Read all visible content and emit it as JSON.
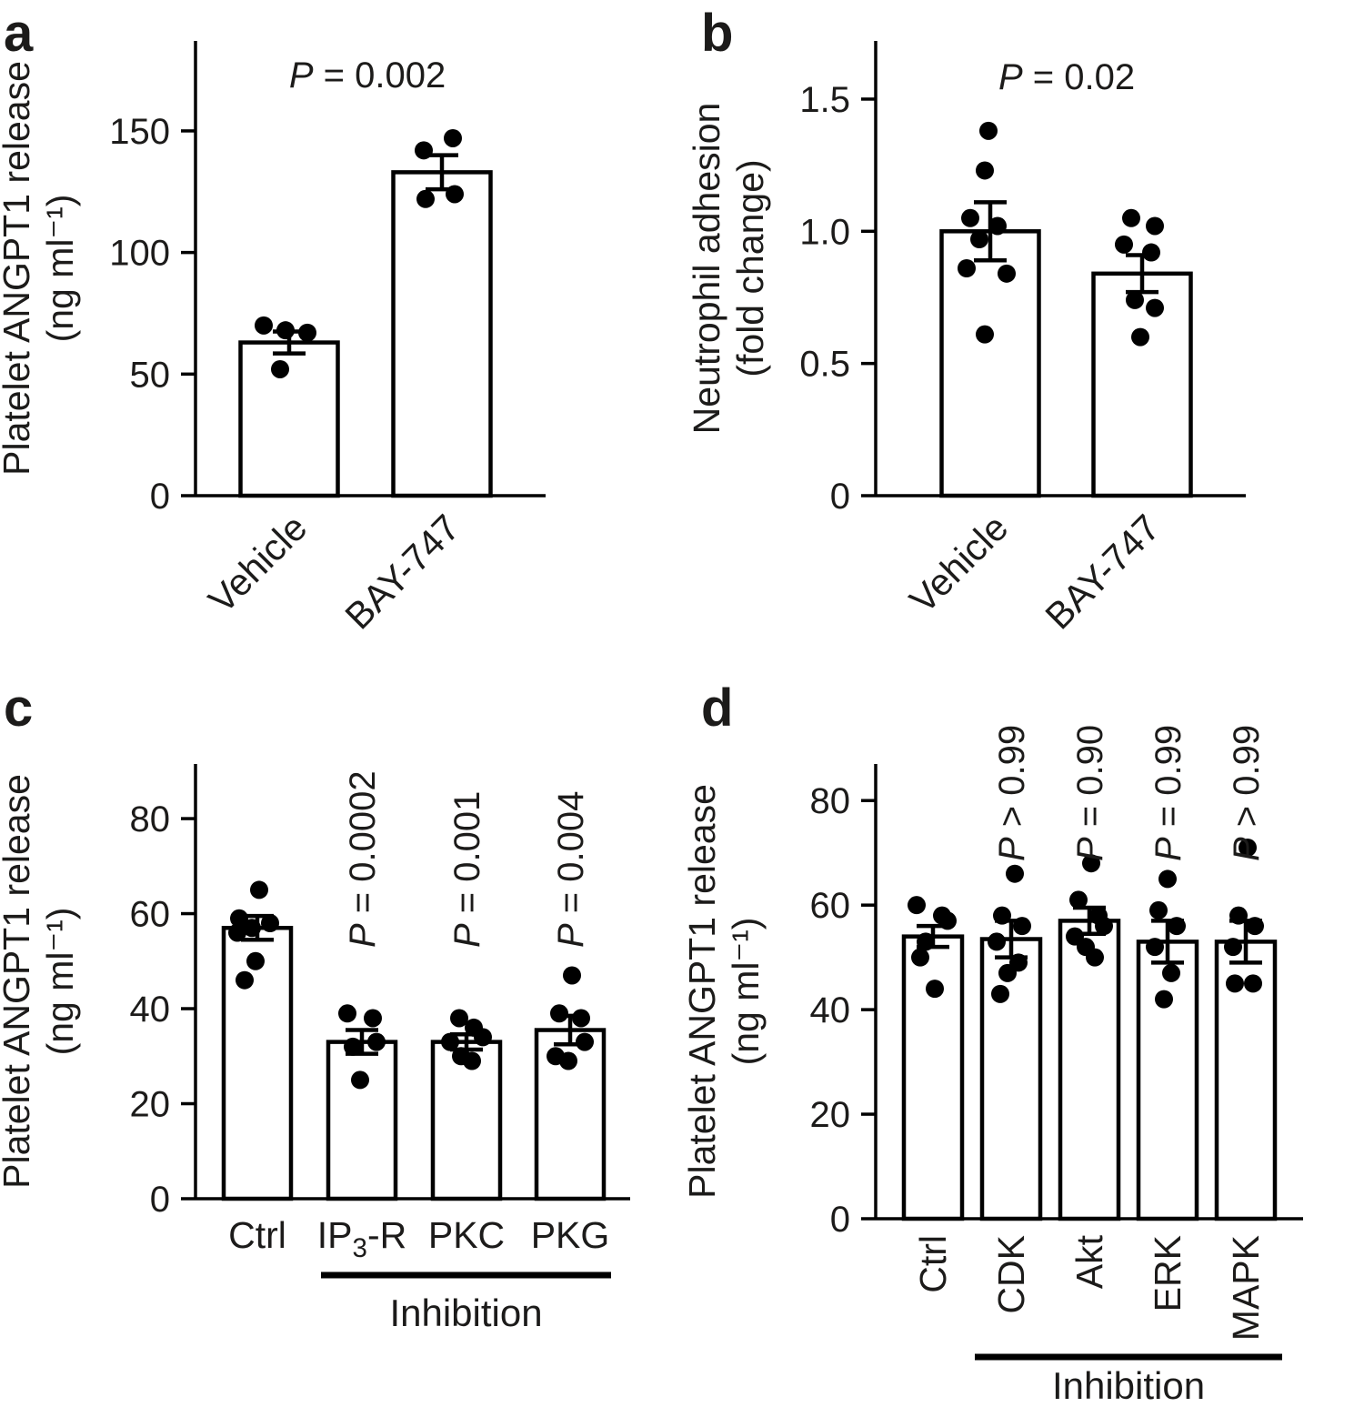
{
  "colors": {
    "background": "#ffffff",
    "bar_fill": "#ffffff",
    "bar_stroke": "#000000",
    "point": "#000000",
    "axis": "#000000",
    "text": "#1c1b1a"
  },
  "chart_data": [
    {
      "id": "a",
      "letter": "a",
      "type": "bar",
      "title": "",
      "ylabel_lines": [
        "Platelet ANGPT1 release",
        "(ng ml⁻¹)"
      ],
      "ylim": [
        0,
        187
      ],
      "yticks": [
        [
          0,
          "0"
        ],
        [
          50,
          "50"
        ],
        [
          100,
          "100"
        ],
        [
          150,
          "150"
        ]
      ],
      "annotation": "P = 0.002",
      "bars": [
        {
          "label": "Vehicle",
          "mean": 63,
          "sem": 4.5,
          "points": [
            [
              -28,
              70
            ],
            [
              -4,
              68
            ],
            [
              20,
              67
            ],
            [
              -10,
              52
            ]
          ]
        },
        {
          "label": "BAY-747",
          "mean": 133,
          "sem": 7,
          "points": [
            [
              -20,
              142
            ],
            [
              12,
              147
            ],
            [
              -18,
              122
            ],
            [
              14,
              124
            ]
          ]
        }
      ]
    },
    {
      "id": "b",
      "letter": "b",
      "type": "bar",
      "title": "",
      "ylabel_lines": [
        "Neutrophil adhesion",
        "(fold change)"
      ],
      "ylim": [
        0,
        1.72
      ],
      "yticks": [
        [
          0,
          "0"
        ],
        [
          0.5,
          "0.5"
        ],
        [
          1,
          "1.0"
        ],
        [
          1.5,
          "1.5"
        ]
      ],
      "annotation": "P = 0.02",
      "bars": [
        {
          "label": "Vehicle",
          "mean": 1.0,
          "sem": 0.11,
          "points": [
            [
              -2,
              1.38
            ],
            [
              -6,
              1.23
            ],
            [
              -22,
              1.05
            ],
            [
              8,
              1.02
            ],
            [
              -12,
              0.97
            ],
            [
              -26,
              0.86
            ],
            [
              18,
              0.84
            ],
            [
              -6,
              0.61
            ]
          ]
        },
        {
          "label": "BAY-747",
          "mean": 0.84,
          "sem": 0.07,
          "points": [
            [
              -12,
              1.05
            ],
            [
              14,
              1.02
            ],
            [
              -20,
              0.95
            ],
            [
              10,
              0.92
            ],
            [
              -8,
              0.74
            ],
            [
              14,
              0.71
            ],
            [
              -2,
              0.6
            ]
          ]
        }
      ]
    },
    {
      "id": "c",
      "letter": "c",
      "type": "bar",
      "title": "",
      "ylabel_lines": [
        "Platelet ANGPT1 release",
        "(ng ml⁻¹)"
      ],
      "ylim": [
        0,
        91.5
      ],
      "yticks": [
        [
          0,
          "0"
        ],
        [
          20,
          "20"
        ],
        [
          40,
          "40"
        ],
        [
          60,
          "60"
        ],
        [
          80,
          "80"
        ]
      ],
      "group": {
        "label": "Inhibition",
        "from": 1,
        "to": 3
      },
      "bars": [
        {
          "label": "Ctrl",
          "mean": 57,
          "sem": 2.5,
          "points": [
            [
              2,
              65
            ],
            [
              -20,
              59
            ],
            [
              14,
              58
            ],
            [
              -6,
              57
            ],
            [
              -22,
              56
            ],
            [
              -2,
              50
            ],
            [
              -14,
              46
            ]
          ]
        },
        {
          "label": [
            "IP",
            {
              "sub": "3"
            },
            "-R"
          ],
          "p": "P = 0.0002",
          "mean": 33,
          "sem": 2.5,
          "points": [
            [
              -16,
              39
            ],
            [
              12,
              38
            ],
            [
              16,
              33
            ],
            [
              -10,
              32
            ],
            [
              -2,
              25
            ]
          ]
        },
        {
          "label": "PKC",
          "p": "P = 0.001",
          "mean": 33,
          "sem": 1.6,
          "points": [
            [
              -8,
              38
            ],
            [
              8,
              36
            ],
            [
              18,
              34
            ],
            [
              -18,
              33
            ],
            [
              -6,
              30
            ],
            [
              6,
              29
            ]
          ]
        },
        {
          "label": "PKG",
          "p": "P = 0.004",
          "mean": 35.5,
          "sem": 3,
          "points": [
            [
              2,
              47
            ],
            [
              -12,
              39
            ],
            [
              12,
              38
            ],
            [
              16,
              33
            ],
            [
              -16,
              30
            ],
            [
              -2,
              29
            ]
          ]
        }
      ]
    },
    {
      "id": "d",
      "letter": "d",
      "type": "bar",
      "title": "",
      "ylabel_lines": [
        "Platelet ANGPT1 release",
        "(ng ml⁻¹)"
      ],
      "ylim": [
        0,
        87
      ],
      "yticks": [
        [
          0,
          "0"
        ],
        [
          20,
          "20"
        ],
        [
          40,
          "40"
        ],
        [
          60,
          "60"
        ],
        [
          80,
          "80"
        ]
      ],
      "group": {
        "label": "Inhibition",
        "from": 1,
        "to": 4
      },
      "bars": [
        {
          "label": "Ctrl",
          "mean": 54,
          "sem": 2,
          "points": [
            [
              -18,
              60
            ],
            [
              10,
              58
            ],
            [
              16,
              57
            ],
            [
              -8,
              53
            ],
            [
              -14,
              50
            ],
            [
              2,
              44
            ]
          ]
        },
        {
          "label": "CDK",
          "p": "P > 0.99",
          "mean": 53.5,
          "sem": 3.5,
          "points": [
            [
              4,
              66
            ],
            [
              -10,
              58
            ],
            [
              12,
              56
            ],
            [
              -16,
              53
            ],
            [
              8,
              49
            ],
            [
              -4,
              47
            ],
            [
              -12,
              43
            ]
          ]
        },
        {
          "label": "Akt",
          "p": "P = 0.90",
          "mean": 57,
          "sem": 2.5,
          "points": [
            [
              2,
              68
            ],
            [
              -12,
              61
            ],
            [
              10,
              58
            ],
            [
              16,
              56
            ],
            [
              -16,
              54
            ],
            [
              -4,
              52
            ],
            [
              6,
              50
            ]
          ]
        },
        {
          "label": "ERK",
          "p": "P = 0.99",
          "mean": 53,
          "sem": 4,
          "points": [
            [
              0,
              65
            ],
            [
              -10,
              59
            ],
            [
              10,
              56
            ],
            [
              -14,
              52
            ],
            [
              4,
              47
            ],
            [
              -4,
              42
            ]
          ]
        },
        {
          "label": "MAPK",
          "p": "P > 0.99",
          "mean": 53,
          "sem": 4,
          "points": [
            [
              2,
              71
            ],
            [
              -8,
              58
            ],
            [
              10,
              56
            ],
            [
              -14,
              52
            ],
            [
              -12,
              45
            ],
            [
              8,
              45
            ]
          ]
        }
      ]
    }
  ]
}
